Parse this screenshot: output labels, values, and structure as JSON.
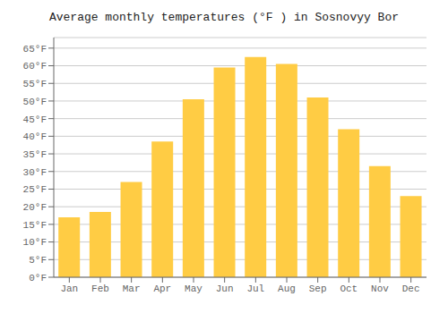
{
  "chart_data": {
    "type": "bar",
    "title": "Average monthly temperatures (°F ) in Sosnovyy Bor",
    "categories": [
      "Jan",
      "Feb",
      "Mar",
      "Apr",
      "May",
      "Jun",
      "Jul",
      "Aug",
      "Sep",
      "Oct",
      "Nov",
      "Dec"
    ],
    "values": [
      17,
      18.5,
      27,
      38.5,
      50.5,
      59.5,
      62.5,
      60.5,
      51,
      42,
      31.5,
      23
    ],
    "color": "#FFCC44",
    "ylim": [
      0,
      68
    ],
    "yticks": [
      {
        "value": 0,
        "label": "0°F"
      },
      {
        "value": 5,
        "label": "5°F"
      },
      {
        "value": 10,
        "label": "10°F"
      },
      {
        "value": 15,
        "label": "15°F"
      },
      {
        "value": 20,
        "label": "20°F"
      },
      {
        "value": 25,
        "label": "25°F"
      },
      {
        "value": 30,
        "label": "30°F"
      },
      {
        "value": 35,
        "label": "35°F"
      },
      {
        "value": 40,
        "label": "40°F"
      },
      {
        "value": 45,
        "label": "45°F"
      },
      {
        "value": 50,
        "label": "50°F"
      },
      {
        "value": 55,
        "label": "55°F"
      },
      {
        "value": 60,
        "label": "60°F"
      },
      {
        "value": 65,
        "label": "65°F"
      }
    ],
    "grid": true
  }
}
